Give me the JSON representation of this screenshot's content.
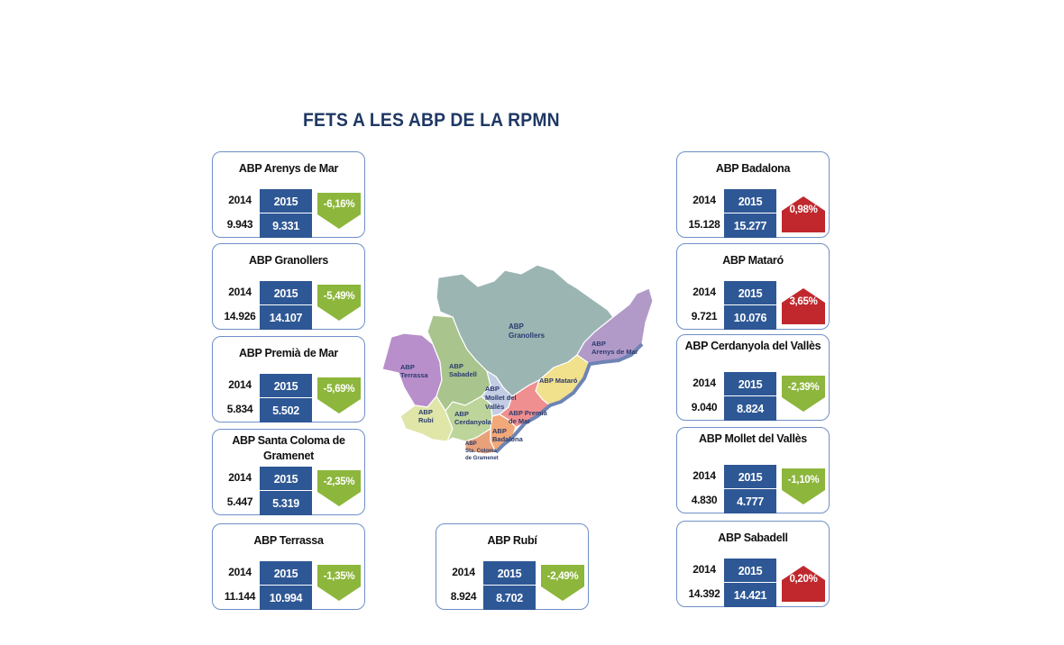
{
  "title": "FETS A LES ABP DE LA RPMN",
  "colors": {
    "title": "#1f3864",
    "box_fill": "#2e5795",
    "card_border": "#6f8fc8",
    "decrease_badge": "#8db63c",
    "increase_badge": "#c0282d"
  },
  "cards": [
    {
      "name": "ABP Arenys de Mar",
      "year_prev": "2014",
      "year_cur": "2015",
      "value_prev": "9.943",
      "value_cur": "9.331",
      "change": "-6,16%",
      "direction": "down"
    },
    {
      "name": "ABP Granollers",
      "year_prev": "2014",
      "year_cur": "2015",
      "value_prev": "14.926",
      "value_cur": "14.107",
      "change": "-5,49%",
      "direction": "down"
    },
    {
      "name": "ABP Premià de Mar",
      "year_prev": "2014",
      "year_cur": "2015",
      "value_prev": "5.834",
      "value_cur": "5.502",
      "change": "-5,69%",
      "direction": "down"
    },
    {
      "name": "ABP Santa Coloma de Gramenet",
      "year_prev": "2014",
      "year_cur": "2015",
      "value_prev": "5.447",
      "value_cur": "5.319",
      "change": "-2,35%",
      "direction": "down"
    },
    {
      "name": "ABP Terrassa",
      "year_prev": "2014",
      "year_cur": "2015",
      "value_prev": "11.144",
      "value_cur": "10.994",
      "change": "-1,35%",
      "direction": "down"
    },
    {
      "name": "ABP Rubí",
      "year_prev": "2014",
      "year_cur": "2015",
      "value_prev": "8.924",
      "value_cur": "8.702",
      "change": "-2,49%",
      "direction": "down"
    },
    {
      "name": "ABP Badalona",
      "year_prev": "2014",
      "year_cur": "2015",
      "value_prev": "15.128",
      "value_cur": "15.277",
      "change": "0,98%",
      "direction": "up"
    },
    {
      "name": "ABP Mataró",
      "year_prev": "2014",
      "year_cur": "2015",
      "value_prev": "9.721",
      "value_cur": "10.076",
      "change": "3,65%",
      "direction": "up"
    },
    {
      "name": "ABP Cerdanyola del Vallès",
      "year_prev": "2014",
      "year_cur": "2015",
      "value_prev": "9.040",
      "value_cur": "8.824",
      "change": "-2,39%",
      "direction": "down"
    },
    {
      "name": "ABP Mollet del Vallès",
      "year_prev": "2014",
      "year_cur": "2015",
      "value_prev": "4.830",
      "value_cur": "4.777",
      "change": "-1,10%",
      "direction": "down"
    },
    {
      "name": "ABP Sabadell",
      "year_prev": "2014",
      "year_cur": "2015",
      "value_prev": "14.392",
      "value_cur": "14.421",
      "change": "0,20%",
      "direction": "up"
    }
  ],
  "map": {
    "labels": {
      "granollers": [
        "ABP",
        "Granollers"
      ],
      "arenys": [
        "ABP",
        "Arenys de Mar"
      ],
      "terrassa": [
        "ABP",
        "Terrassa"
      ],
      "sabadell": [
        "ABP",
        "Sabadell"
      ],
      "mataro": "ABP Mataró",
      "mollet": [
        "ABP",
        "Mollet del",
        "Vallès"
      ],
      "rubi": [
        "ABP",
        "Rubí"
      ],
      "cerdanyola": [
        "ABP",
        "Cerdanyola"
      ],
      "premia": [
        "ABP Premià",
        "de Mar"
      ],
      "badalona": [
        "ABP",
        "Badalona"
      ],
      "santacoloma": [
        "ABP",
        "Sta. Coloma",
        "de Gramenet"
      ]
    },
    "colors": {
      "granollers": "#9bb5b3",
      "arenys": "#b19ac8",
      "terrassa": "#b98fcb",
      "sabadell": "#a9c48c",
      "mataro": "#f1e08c",
      "mollet": "#c3cde3",
      "rubi": "#dfe6a8",
      "cerdanyola": "#bdd49a",
      "premia": "#ef8f8f",
      "badalona": "#f2a878",
      "santacoloma": "#e8a27a",
      "coast": "#6d84b4"
    }
  }
}
